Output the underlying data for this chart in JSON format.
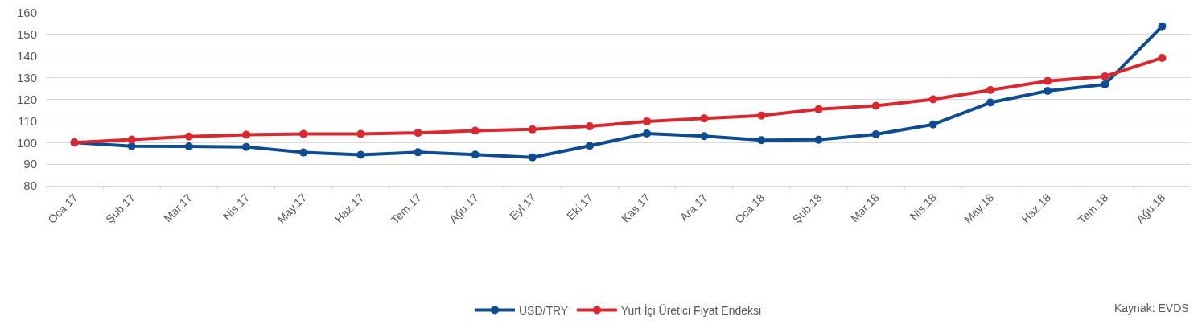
{
  "chart_data": {
    "type": "line",
    "categories": [
      "Oca.17",
      "Şub.17",
      "Mar.17",
      "Nis.17",
      "May.17",
      "Haz.17",
      "Tem.17",
      "Ağu.17",
      "Eyl.17",
      "Eki.17",
      "Kas.17",
      "Ara.17",
      "Oca.18",
      "Şub.18",
      "Mar.18",
      "Nis.18",
      "May.18",
      "Haz.18",
      "Tem.18",
      "Ağu.18"
    ],
    "series": [
      {
        "name": "USD/TRY",
        "color": "#0e4c92",
        "values": [
          100,
          98.3,
          98.2,
          98,
          95.4,
          94.3,
          95.5,
          94.4,
          93.1,
          98.5,
          104.2,
          103,
          101.1,
          101.3,
          103.8,
          108.4,
          118.5,
          123.9,
          126.9,
          153.8
        ]
      },
      {
        "name": "Yurt İçi Üretici Fiyat Endeksi",
        "color": "#d9282f",
        "values": [
          100,
          101.4,
          102.8,
          103.6,
          104,
          104,
          104.5,
          105.5,
          106.1,
          107.5,
          109.8,
          111.2,
          112.5,
          115.4,
          117,
          120,
          124.3,
          128.5,
          130.6,
          139.2
        ]
      }
    ],
    "ylim": [
      80,
      160
    ],
    "yticks": [
      80,
      90,
      100,
      110,
      120,
      130,
      140,
      150,
      160
    ],
    "grid": "y",
    "legend": "bottom",
    "marker": "circle",
    "line_style": "solid",
    "annotations": [
      "Kaynak: EVDS"
    ]
  }
}
